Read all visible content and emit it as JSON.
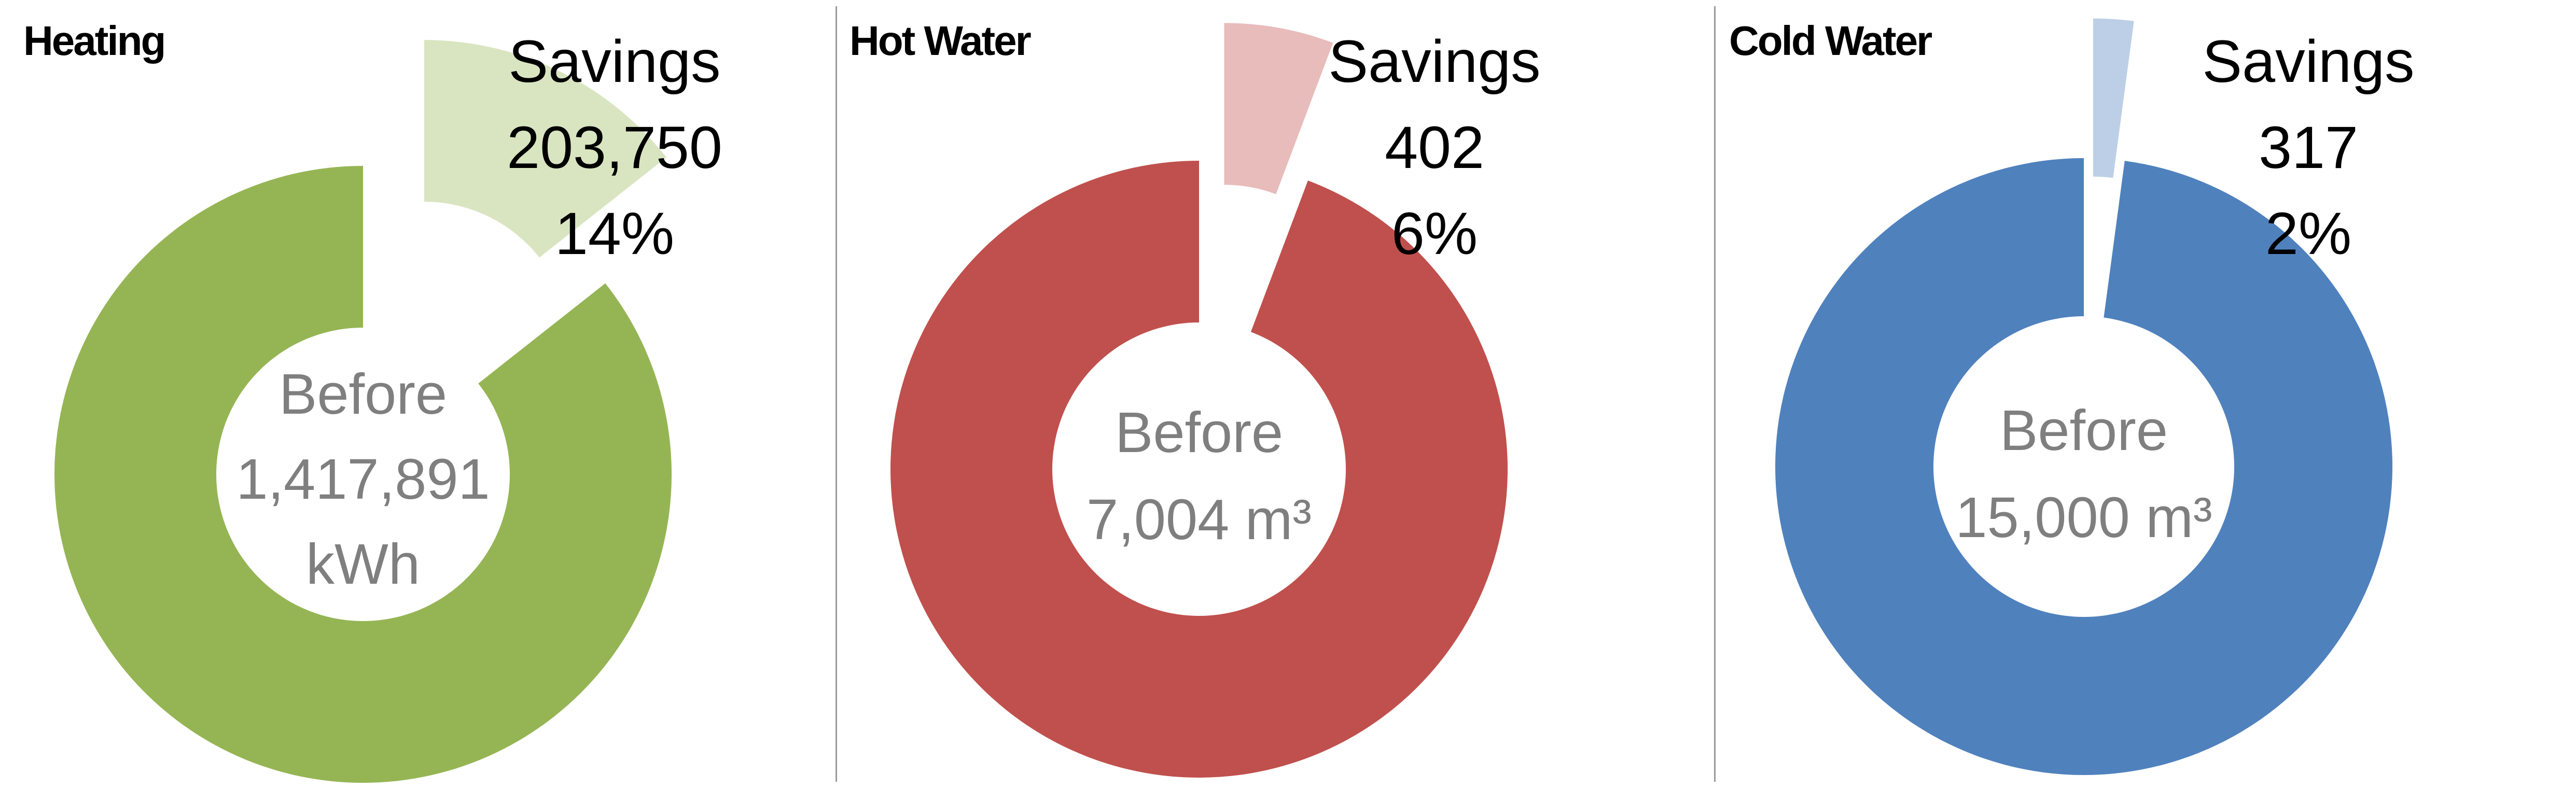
{
  "page": {
    "background": "#ffffff",
    "divider_color": "#9a9a9a",
    "center_text_color": "#7f7f7f"
  },
  "chart_data": [
    {
      "type": "pie",
      "subtype": "donut-exploded-slice",
      "title": "Heating",
      "unit": "kWh",
      "values": {
        "before": 1417891,
        "savings": 203750
      },
      "savings_pct": "14%",
      "labels": {
        "savings_lines": [
          "Savings",
          "203,750",
          "14%"
        ],
        "center_lines": [
          "Before",
          "1,417,891",
          "kWh"
        ]
      },
      "colors": {
        "before": "#95B554",
        "savings": "#D9E5C1"
      },
      "legend": "none",
      "grid": false
    },
    {
      "type": "pie",
      "subtype": "donut-exploded-slice",
      "title": "Hot Water",
      "unit": "m³",
      "values": {
        "before": 7004,
        "savings": 402
      },
      "savings_pct": "6%",
      "labels": {
        "savings_lines": [
          "Savings",
          "402",
          "6%"
        ],
        "center_lines": [
          "Before",
          "7,004 m³"
        ]
      },
      "colors": {
        "before": "#C0504D",
        "savings": "#E8BCBB"
      },
      "legend": "none",
      "grid": false
    },
    {
      "type": "pie",
      "subtype": "donut-exploded-slice",
      "title": "Cold Water",
      "unit": "m³",
      "values": {
        "before": 15000,
        "savings": 317
      },
      "savings_pct": "2%",
      "labels": {
        "savings_lines": [
          "Savings",
          "317",
          "2%"
        ],
        "center_lines": [
          "Before",
          "15,000 m³"
        ]
      },
      "colors": {
        "before": "#4F81BD",
        "savings": "#BCCFE7"
      },
      "legend": "none",
      "grid": false
    }
  ]
}
